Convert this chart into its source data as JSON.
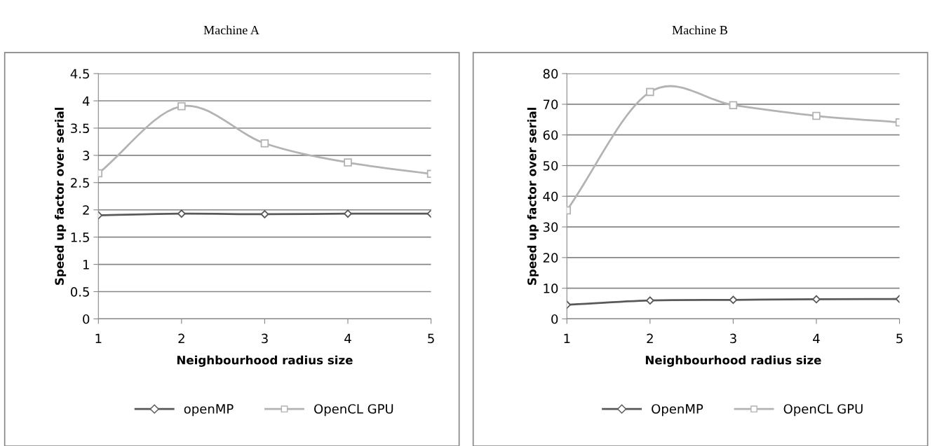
{
  "chart_data": [
    {
      "type": "line",
      "title": "Machine A",
      "xlabel": "Neighbourhood radius size",
      "ylabel": "Speed up factor over serial",
      "categories": [
        "1",
        "2",
        "3",
        "4",
        "5"
      ],
      "ylim": [
        0,
        4.5
      ],
      "yticks": [
        0,
        0.5,
        1,
        1.5,
        2,
        2.5,
        3,
        3.5,
        4,
        4.5
      ],
      "grid": "y",
      "legend": "bottom",
      "series": [
        {
          "name": "openMP",
          "color": "#595959",
          "marker": "diamond",
          "values": [
            1.9,
            1.93,
            1.92,
            1.93,
            1.93
          ]
        },
        {
          "name": "OpenCL GPU",
          "color": "#b3b3b3",
          "marker": "square",
          "values": [
            2.67,
            3.9,
            3.22,
            2.87,
            2.66
          ]
        }
      ]
    },
    {
      "type": "line",
      "title": "Machine B",
      "xlabel": "Neighbourhood radius size",
      "ylabel": "Speed up factor over serial",
      "categories": [
        "1",
        "2",
        "3",
        "4",
        "5"
      ],
      "ylim": [
        0,
        80
      ],
      "yticks": [
        0,
        10,
        20,
        30,
        40,
        50,
        60,
        70,
        80
      ],
      "grid": "y",
      "legend": "bottom",
      "series": [
        {
          "name": "OpenMP",
          "color": "#595959",
          "marker": "diamond",
          "values": [
            4.6,
            6.0,
            6.2,
            6.4,
            6.5
          ]
        },
        {
          "name": "OpenCL GPU",
          "color": "#b3b3b3",
          "marker": "square",
          "values": [
            35.4,
            74,
            69.7,
            66.2,
            64.1
          ]
        }
      ]
    }
  ]
}
